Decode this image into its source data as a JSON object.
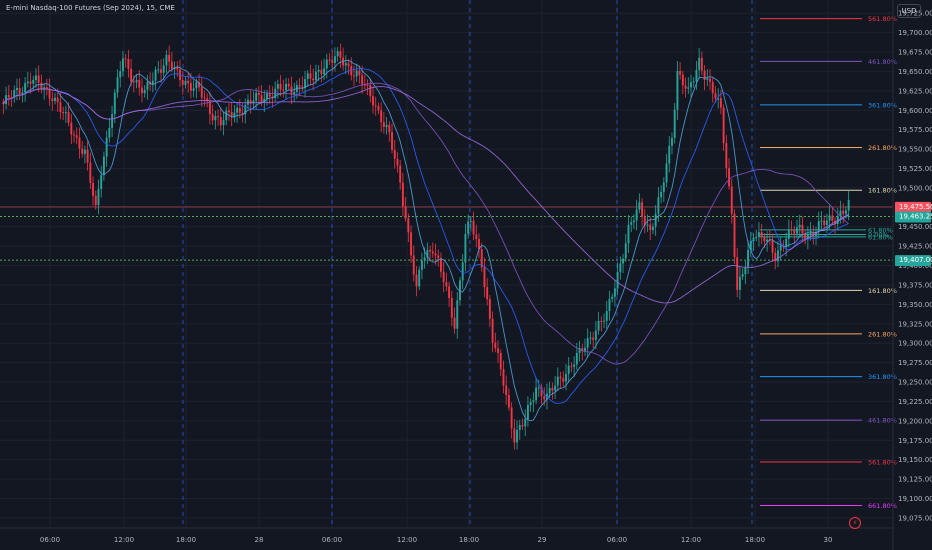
{
  "header": {
    "title": "E-mini Nasdaq-100 Futures (Sep 2024), 15, CME",
    "currency": "USD"
  },
  "colors": {
    "background": "#131722",
    "grid": "#1e222d",
    "up": "#26a69a",
    "down": "#f23645",
    "ma_blue": "#2962ff",
    "ma_light_blue": "#4fa3e0",
    "ma_purple": "#7e57c2",
    "ma_violet": "#9c6ade",
    "session_line": "#2962ff",
    "current_price": "#f7525f",
    "green_tag": "#26a69a",
    "fib_161": "#e0d9b0",
    "fib_261": "#f7a65e",
    "fib_361": "#2196f3",
    "fib_461": "#7e57c2",
    "fib_561": "#f23645",
    "fib_661": "#e040fb"
  },
  "chart_data": {
    "type": "candlestick",
    "title": "E-mini Nasdaq-100 Futures (Sep 2024), 15, CME",
    "ylim": [
      19062,
      19742
    ],
    "yticks": [
      19075,
      19100,
      19125,
      19150,
      19175,
      19200,
      19225,
      19250,
      19275,
      19300,
      19325,
      19350,
      19375,
      19400,
      19425,
      19450,
      19475,
      19500,
      19525,
      19550,
      19575,
      19600,
      19625,
      19650,
      19675,
      19700,
      19725
    ],
    "ytick_labels": [
      "19,075.00",
      "19,100.00",
      "19,125.00",
      "19,150.00",
      "19,175.00",
      "19,200.00",
      "19,225.00",
      "19,250.00",
      "19,275.00",
      "19,300.00",
      "19,325.00",
      "19,350.00",
      "19,375.00",
      "19,400.00",
      "19,425.00",
      "19,450.00",
      "19,475.00",
      "19,500.00",
      "19,525.00",
      "19,550.00",
      "19,575.00",
      "19,600.00",
      "19,625.00",
      "19,650.00",
      "19,675.00",
      "19,700.00",
      "19,725.00"
    ],
    "xticks": [
      "06:00",
      "12:00",
      "18:00",
      "28",
      "06:00",
      "12:00",
      "18:00",
      "29",
      "06:00",
      "12:00",
      "18:00",
      "30"
    ],
    "anchors": [
      [
        0,
        19608
      ],
      [
        10,
        19640
      ],
      [
        18,
        19620
      ],
      [
        25,
        19575
      ],
      [
        30,
        19545
      ],
      [
        34,
        19470
      ],
      [
        36,
        19525
      ],
      [
        40,
        19600
      ],
      [
        44,
        19668
      ],
      [
        48,
        19640
      ],
      [
        52,
        19620
      ],
      [
        56,
        19650
      ],
      [
        60,
        19665
      ],
      [
        64,
        19645
      ],
      [
        68,
        19635
      ],
      [
        72,
        19625
      ],
      [
        76,
        19600
      ],
      [
        80,
        19585
      ],
      [
        86,
        19600
      ],
      [
        92,
        19612
      ],
      [
        100,
        19625
      ],
      [
        108,
        19630
      ],
      [
        114,
        19642
      ],
      [
        118,
        19660
      ],
      [
        124,
        19668
      ],
      [
        130,
        19645
      ],
      [
        136,
        19615
      ],
      [
        142,
        19565
      ],
      [
        146,
        19510
      ],
      [
        150,
        19415
      ],
      [
        152,
        19365
      ],
      [
        154,
        19410
      ],
      [
        158,
        19425
      ],
      [
        162,
        19380
      ],
      [
        166,
        19325
      ],
      [
        170,
        19440
      ],
      [
        172,
        19455
      ],
      [
        176,
        19405
      ],
      [
        180,
        19305
      ],
      [
        184,
        19250
      ],
      [
        188,
        19180
      ],
      [
        192,
        19200
      ],
      [
        196,
        19245
      ],
      [
        200,
        19230
      ],
      [
        206,
        19260
      ],
      [
        212,
        19285
      ],
      [
        218,
        19320
      ],
      [
        222,
        19335
      ],
      [
        226,
        19390
      ],
      [
        230,
        19445
      ],
      [
        234,
        19475
      ],
      [
        238,
        19445
      ],
      [
        242,
        19490
      ],
      [
        246,
        19570
      ],
      [
        248,
        19650
      ],
      [
        252,
        19620
      ],
      [
        256,
        19665
      ],
      [
        260,
        19630
      ],
      [
        264,
        19600
      ],
      [
        266,
        19530
      ],
      [
        268,
        19470
      ],
      [
        270,
        19365
      ],
      [
        273,
        19400
      ],
      [
        276,
        19445
      ],
      [
        280,
        19435
      ],
      [
        284,
        19410
      ],
      [
        288,
        19440
      ],
      [
        292,
        19445
      ],
      [
        296,
        19440
      ],
      [
        300,
        19450
      ],
      [
        304,
        19458
      ],
      [
        308,
        19468
      ],
      [
        311,
        19476
      ]
    ],
    "moving_averages": [
      {
        "periods": 9,
        "color": "#4fa3e0"
      },
      {
        "periods": 21,
        "color": "#2962ff"
      },
      {
        "periods": 50,
        "color": "#7e57c2"
      },
      {
        "periods": 100,
        "color": "#9c6ade"
      }
    ],
    "session_separators": [
      "18:00",
      "06:00",
      "18:00",
      "06:00",
      "18:00"
    ],
    "fib_levels": [
      {
        "label": "661.80%",
        "price": 19091,
        "color": "#e040fb"
      },
      {
        "label": "561.80%",
        "price": 19147,
        "color": "#f23645"
      },
      {
        "label": "461.80%",
        "price": 19201,
        "color": "#7e57c2"
      },
      {
        "label": "361.80%",
        "price": 19257,
        "color": "#2196f3"
      },
      {
        "label": "261.80%",
        "price": 19312,
        "color": "#f7a65e"
      },
      {
        "label": "161.80%",
        "price": 19368,
        "color": "#e0d9b0"
      },
      {
        "label": "61.80%",
        "price": 19446,
        "color": "#26a69a"
      },
      {
        "label": "0.00%",
        "price": 19440,
        "color": "#26a69a"
      },
      {
        "label": "61.80%",
        "price": 19437,
        "color": "#26a69a"
      },
      {
        "label": "161.80%",
        "price": 19497,
        "color": "#e0d9b0"
      },
      {
        "label": "261.80%",
        "price": 19552,
        "color": "#f7a65e"
      },
      {
        "label": "361.80%",
        "price": 19607,
        "color": "#2196f3"
      },
      {
        "label": "461.80%",
        "price": 19663,
        "color": "#7e57c2"
      },
      {
        "label": "561.80%",
        "price": 19718,
        "color": "#f23645"
      }
    ],
    "current_price": {
      "label": "19,475.50",
      "countdown": "06:07",
      "price": 19475.5
    },
    "horizontal_lines": [
      {
        "label": "19,463.25",
        "price": 19463.25
      },
      {
        "label": "19,407.00",
        "price": 19407
      }
    ]
  }
}
